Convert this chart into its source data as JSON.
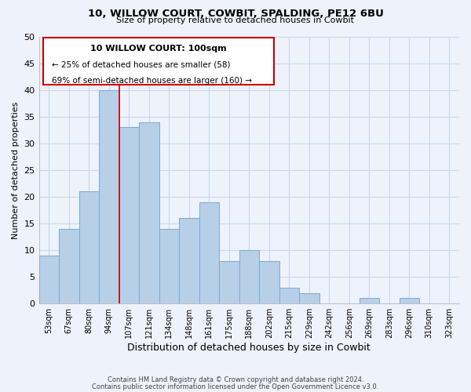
{
  "title": "10, WILLOW COURT, COWBIT, SPALDING, PE12 6BU",
  "subtitle": "Size of property relative to detached houses in Cowbit",
  "xlabel": "Distribution of detached houses by size in Cowbit",
  "ylabel": "Number of detached properties",
  "footer_line1": "Contains HM Land Registry data © Crown copyright and database right 2024.",
  "footer_line2": "Contains public sector information licensed under the Open Government Licence v3.0.",
  "bin_labels": [
    "53sqm",
    "67sqm",
    "80sqm",
    "94sqm",
    "107sqm",
    "121sqm",
    "134sqm",
    "148sqm",
    "161sqm",
    "175sqm",
    "188sqm",
    "202sqm",
    "215sqm",
    "229sqm",
    "242sqm",
    "256sqm",
    "269sqm",
    "283sqm",
    "296sqm",
    "310sqm",
    "323sqm"
  ],
  "bar_values": [
    9,
    14,
    21,
    40,
    33,
    34,
    14,
    16,
    19,
    8,
    10,
    8,
    3,
    2,
    0,
    0,
    1,
    0,
    1,
    0,
    0
  ],
  "bar_color": "#b8cfe8",
  "bar_edge_color": "#7aaad0",
  "grid_color": "#c8d8ee",
  "background_color": "#eef2fa",
  "annotation_box_color": "#ffffff",
  "annotation_box_edge": "#cc0000",
  "marker_line_color": "#cc0000",
  "marker_bin_index": 4,
  "annotation_title": "10 WILLOW COURT: 100sqm",
  "annotation_line1": "← 25% of detached houses are smaller (58)",
  "annotation_line2": "69% of semi-detached houses are larger (160) →",
  "ylim": [
    0,
    50
  ],
  "yticks": [
    0,
    5,
    10,
    15,
    20,
    25,
    30,
    35,
    40,
    45,
    50
  ]
}
